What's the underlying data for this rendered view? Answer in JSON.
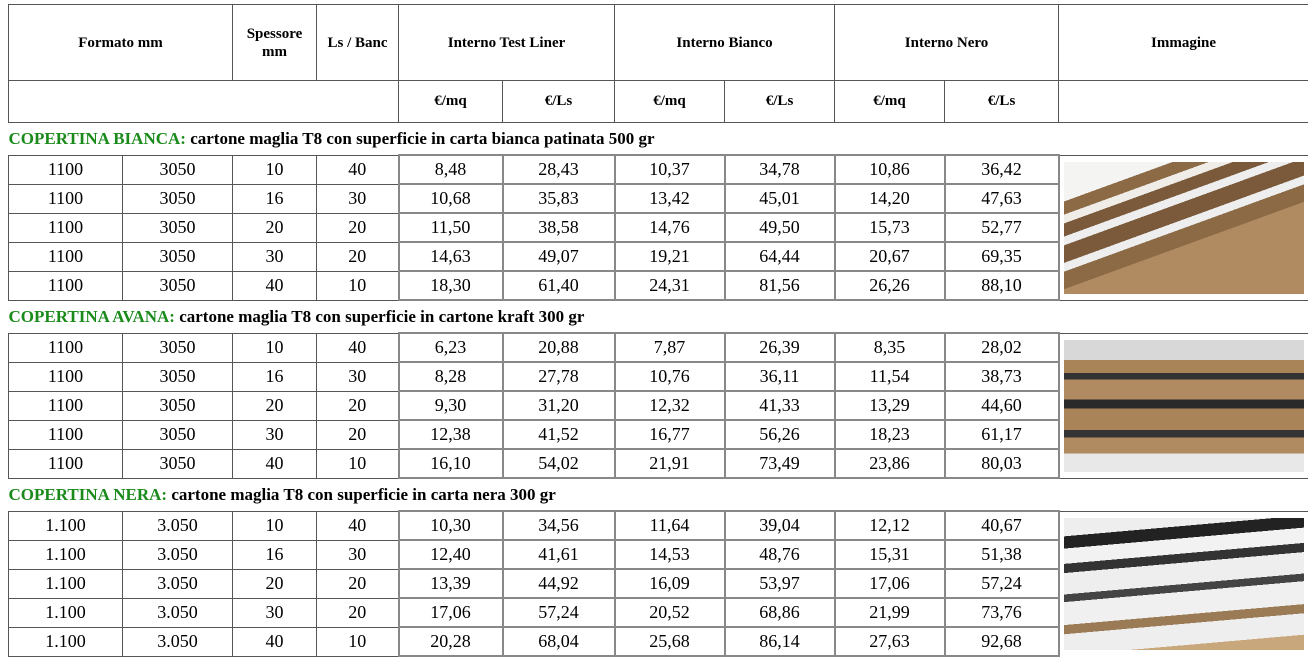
{
  "table": {
    "headers": [
      "Formato mm",
      "Spessore mm",
      "Ls / Banc",
      "Interno Test Liner",
      "Interno Bianco",
      "Interno Nero",
      "Immagine"
    ],
    "subheaders": [
      "€/mq",
      "€/Ls",
      "€/mq",
      "€/Ls",
      "€/mq",
      "€/Ls"
    ],
    "sections": [
      {
        "title": "COPERTINA BIANCA:",
        "description": "cartone maglia T8 con superficie in carta bianca patinata 500 gr",
        "rows": [
          [
            "1100",
            "3050",
            "10",
            "40",
            "8,48",
            "28,43",
            "10,37",
            "34,78",
            "10,86",
            "36,42"
          ],
          [
            "1100",
            "3050",
            "16",
            "30",
            "10,68",
            "35,83",
            "13,42",
            "45,01",
            "14,20",
            "47,63"
          ],
          [
            "1100",
            "3050",
            "20",
            "20",
            "11,50",
            "38,58",
            "14,76",
            "49,50",
            "15,73",
            "52,77"
          ],
          [
            "1100",
            "3050",
            "30",
            "20",
            "14,63",
            "49,07",
            "19,21",
            "64,44",
            "20,67",
            "69,35"
          ],
          [
            "1100",
            "3050",
            "40",
            "10",
            "18,30",
            "61,40",
            "24,31",
            "81,56",
            "26,26",
            "88,10"
          ]
        ]
      },
      {
        "title": "COPERTINA AVANA:",
        "description": "cartone maglia T8 con superficie in cartone kraft 300 gr",
        "rows": [
          [
            "1100",
            "3050",
            "10",
            "40",
            "6,23",
            "20,88",
            "7,87",
            "26,39",
            "8,35",
            "28,02"
          ],
          [
            "1100",
            "3050",
            "16",
            "30",
            "8,28",
            "27,78",
            "10,76",
            "36,11",
            "11,54",
            "38,73"
          ],
          [
            "1100",
            "3050",
            "20",
            "20",
            "9,30",
            "31,20",
            "12,32",
            "41,33",
            "13,29",
            "44,60"
          ],
          [
            "1100",
            "3050",
            "30",
            "20",
            "12,38",
            "41,52",
            "16,77",
            "56,26",
            "18,23",
            "61,17"
          ],
          [
            "1100",
            "3050",
            "40",
            "10",
            "16,10",
            "54,02",
            "21,91",
            "73,49",
            "23,86",
            "80,03"
          ]
        ]
      },
      {
        "title": "COPERTINA NERA:",
        "description": "cartone maglia T8 con superficie in carta nera 300 gr",
        "rows": [
          [
            "1.100",
            "3.050",
            "10",
            "40",
            "10,30",
            "34,56",
            "11,64",
            "39,04",
            "12,12",
            "40,67"
          ],
          [
            "1.100",
            "3.050",
            "16",
            "30",
            "12,40",
            "41,61",
            "14,53",
            "48,76",
            "15,31",
            "51,38"
          ],
          [
            "1.100",
            "3.050",
            "20",
            "20",
            "13,39",
            "44,92",
            "16,09",
            "53,97",
            "17,06",
            "57,24"
          ],
          [
            "1.100",
            "3.050",
            "30",
            "20",
            "17,06",
            "57,24",
            "20,52",
            "68,86",
            "21,99",
            "73,76"
          ],
          [
            "1.100",
            "3.050",
            "40",
            "10",
            "20,28",
            "68,04",
            "25,68",
            "86,14",
            "27,63",
            "92,68"
          ]
        ]
      }
    ]
  }
}
